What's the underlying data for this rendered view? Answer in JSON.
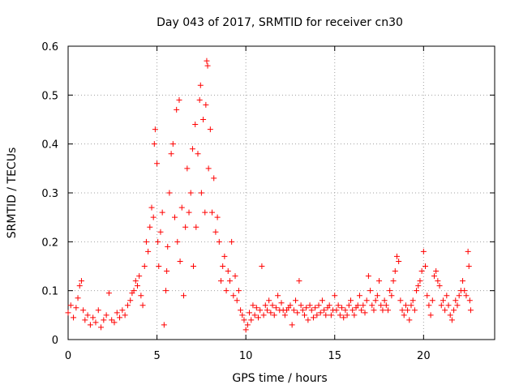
{
  "chart_data": {
    "type": "scatter",
    "title": "Day 043 of 2017, SRMTID for receiver cn30",
    "xlabel": "GPS time / hours",
    "ylabel": "SRMTID / TECUs",
    "xlim": [
      0,
      24
    ],
    "ylim": [
      0,
      0.6
    ],
    "xticks": [
      0,
      5,
      10,
      15,
      20
    ],
    "xtick_labels": [
      "0",
      "5",
      "10",
      "15",
      "20"
    ],
    "yticks": [
      0,
      0.1,
      0.2,
      0.3,
      0.4,
      0.5,
      0.6
    ],
    "ytick_labels": [
      "0",
      "0.1",
      "0.2",
      "0.3",
      "0.4",
      "0.5",
      "0.6"
    ],
    "grid": true,
    "marker": "+",
    "color": "#ff0000",
    "series": [
      {
        "name": "SRMTID",
        "points": [
          [
            0.0,
            0.055
          ],
          [
            0.15,
            0.07
          ],
          [
            0.3,
            0.045
          ],
          [
            0.45,
            0.065
          ],
          [
            0.55,
            0.085
          ],
          [
            0.65,
            0.11
          ],
          [
            0.75,
            0.12
          ],
          [
            0.85,
            0.06
          ],
          [
            0.95,
            0.04
          ],
          [
            1.1,
            0.05
          ],
          [
            1.25,
            0.03
          ],
          [
            1.4,
            0.045
          ],
          [
            1.55,
            0.035
          ],
          [
            1.7,
            0.06
          ],
          [
            1.85,
            0.025
          ],
          [
            2.0,
            0.04
          ],
          [
            2.15,
            0.05
          ],
          [
            2.3,
            0.095
          ],
          [
            2.45,
            0.04
          ],
          [
            2.6,
            0.035
          ],
          [
            2.75,
            0.055
          ],
          [
            2.9,
            0.045
          ],
          [
            3.05,
            0.06
          ],
          [
            3.2,
            0.05
          ],
          [
            3.35,
            0.07
          ],
          [
            3.5,
            0.08
          ],
          [
            3.6,
            0.095
          ],
          [
            3.7,
            0.1
          ],
          [
            3.8,
            0.12
          ],
          [
            3.9,
            0.11
          ],
          [
            4.0,
            0.13
          ],
          [
            4.1,
            0.09
          ],
          [
            4.2,
            0.07
          ],
          [
            4.3,
            0.15
          ],
          [
            4.4,
            0.2
          ],
          [
            4.5,
            0.18
          ],
          [
            4.6,
            0.23
          ],
          [
            4.7,
            0.27
          ],
          [
            4.8,
            0.25
          ],
          [
            4.85,
            0.4
          ],
          [
            4.9,
            0.43
          ],
          [
            5.0,
            0.36
          ],
          [
            5.05,
            0.2
          ],
          [
            5.1,
            0.15
          ],
          [
            5.2,
            0.22
          ],
          [
            5.3,
            0.26
          ],
          [
            5.4,
            0.03
          ],
          [
            5.5,
            0.1
          ],
          [
            5.55,
            0.14
          ],
          [
            5.6,
            0.19
          ],
          [
            5.7,
            0.3
          ],
          [
            5.8,
            0.38
          ],
          [
            5.9,
            0.4
          ],
          [
            6.0,
            0.25
          ],
          [
            6.1,
            0.47
          ],
          [
            6.15,
            0.2
          ],
          [
            6.25,
            0.49
          ],
          [
            6.3,
            0.16
          ],
          [
            6.4,
            0.27
          ],
          [
            6.5,
            0.09
          ],
          [
            6.6,
            0.23
          ],
          [
            6.7,
            0.35
          ],
          [
            6.8,
            0.26
          ],
          [
            6.9,
            0.3
          ],
          [
            7.0,
            0.39
          ],
          [
            7.05,
            0.15
          ],
          [
            7.15,
            0.44
          ],
          [
            7.2,
            0.23
          ],
          [
            7.3,
            0.38
          ],
          [
            7.4,
            0.49
          ],
          [
            7.45,
            0.52
          ],
          [
            7.5,
            0.3
          ],
          [
            7.6,
            0.45
          ],
          [
            7.7,
            0.26
          ],
          [
            7.75,
            0.48
          ],
          [
            7.8,
            0.57
          ],
          [
            7.85,
            0.56
          ],
          [
            7.9,
            0.35
          ],
          [
            8.0,
            0.43
          ],
          [
            8.1,
            0.26
          ],
          [
            8.2,
            0.33
          ],
          [
            8.3,
            0.22
          ],
          [
            8.4,
            0.25
          ],
          [
            8.5,
            0.2
          ],
          [
            8.6,
            0.12
          ],
          [
            8.7,
            0.15
          ],
          [
            8.8,
            0.17
          ],
          [
            8.9,
            0.1
          ],
          [
            9.0,
            0.14
          ],
          [
            9.1,
            0.12
          ],
          [
            9.2,
            0.2
          ],
          [
            9.3,
            0.09
          ],
          [
            9.4,
            0.13
          ],
          [
            9.5,
            0.08
          ],
          [
            9.6,
            0.1
          ],
          [
            9.7,
            0.06
          ],
          [
            9.8,
            0.05
          ],
          [
            9.9,
            0.04
          ],
          [
            10.0,
            0.02
          ],
          [
            10.1,
            0.03
          ],
          [
            10.2,
            0.055
          ],
          [
            10.3,
            0.04
          ],
          [
            10.4,
            0.07
          ],
          [
            10.5,
            0.05
          ],
          [
            10.6,
            0.065
          ],
          [
            10.7,
            0.045
          ],
          [
            10.8,
            0.06
          ],
          [
            10.9,
            0.15
          ],
          [
            11.0,
            0.05
          ],
          [
            11.1,
            0.07
          ],
          [
            11.2,
            0.06
          ],
          [
            11.3,
            0.08
          ],
          [
            11.4,
            0.055
          ],
          [
            11.5,
            0.07
          ],
          [
            11.6,
            0.05
          ],
          [
            11.7,
            0.065
          ],
          [
            11.8,
            0.09
          ],
          [
            11.9,
            0.06
          ],
          [
            12.0,
            0.075
          ],
          [
            12.1,
            0.06
          ],
          [
            12.2,
            0.05
          ],
          [
            12.3,
            0.06
          ],
          [
            12.4,
            0.065
          ],
          [
            12.5,
            0.07
          ],
          [
            12.6,
            0.03
          ],
          [
            12.7,
            0.06
          ],
          [
            12.8,
            0.08
          ],
          [
            12.9,
            0.055
          ],
          [
            13.0,
            0.12
          ],
          [
            13.1,
            0.07
          ],
          [
            13.2,
            0.06
          ],
          [
            13.3,
            0.05
          ],
          [
            13.4,
            0.065
          ],
          [
            13.5,
            0.04
          ],
          [
            13.6,
            0.07
          ],
          [
            13.7,
            0.06
          ],
          [
            13.8,
            0.045
          ],
          [
            13.9,
            0.065
          ],
          [
            14.0,
            0.05
          ],
          [
            14.1,
            0.07
          ],
          [
            14.2,
            0.055
          ],
          [
            14.3,
            0.08
          ],
          [
            14.4,
            0.06
          ],
          [
            14.5,
            0.05
          ],
          [
            14.6,
            0.065
          ],
          [
            14.7,
            0.07
          ],
          [
            14.8,
            0.05
          ],
          [
            14.9,
            0.06
          ],
          [
            15.0,
            0.09
          ],
          [
            15.1,
            0.06
          ],
          [
            15.2,
            0.07
          ],
          [
            15.3,
            0.05
          ],
          [
            15.4,
            0.065
          ],
          [
            15.5,
            0.045
          ],
          [
            15.6,
            0.06
          ],
          [
            15.7,
            0.05
          ],
          [
            15.8,
            0.07
          ],
          [
            15.9,
            0.08
          ],
          [
            16.0,
            0.06
          ],
          [
            16.1,
            0.05
          ],
          [
            16.2,
            0.065
          ],
          [
            16.3,
            0.07
          ],
          [
            16.4,
            0.09
          ],
          [
            16.5,
            0.06
          ],
          [
            16.6,
            0.07
          ],
          [
            16.7,
            0.055
          ],
          [
            16.8,
            0.08
          ],
          [
            16.9,
            0.13
          ],
          [
            17.0,
            0.1
          ],
          [
            17.1,
            0.07
          ],
          [
            17.2,
            0.06
          ],
          [
            17.3,
            0.08
          ],
          [
            17.4,
            0.09
          ],
          [
            17.5,
            0.12
          ],
          [
            17.6,
            0.07
          ],
          [
            17.7,
            0.06
          ],
          [
            17.8,
            0.08
          ],
          [
            17.9,
            0.07
          ],
          [
            18.0,
            0.06
          ],
          [
            18.1,
            0.1
          ],
          [
            18.2,
            0.09
          ],
          [
            18.3,
            0.12
          ],
          [
            18.4,
            0.14
          ],
          [
            18.5,
            0.17
          ],
          [
            18.6,
            0.16
          ],
          [
            18.7,
            0.08
          ],
          [
            18.8,
            0.06
          ],
          [
            18.9,
            0.05
          ],
          [
            19.0,
            0.07
          ],
          [
            19.1,
            0.06
          ],
          [
            19.2,
            0.04
          ],
          [
            19.3,
            0.07
          ],
          [
            19.4,
            0.08
          ],
          [
            19.5,
            0.06
          ],
          [
            19.6,
            0.1
          ],
          [
            19.7,
            0.11
          ],
          [
            19.8,
            0.12
          ],
          [
            19.9,
            0.14
          ],
          [
            20.0,
            0.18
          ],
          [
            20.1,
            0.15
          ],
          [
            20.2,
            0.09
          ],
          [
            20.3,
            0.07
          ],
          [
            20.4,
            0.05
          ],
          [
            20.5,
            0.08
          ],
          [
            20.6,
            0.13
          ],
          [
            20.7,
            0.14
          ],
          [
            20.8,
            0.12
          ],
          [
            20.9,
            0.11
          ],
          [
            21.0,
            0.07
          ],
          [
            21.1,
            0.08
          ],
          [
            21.2,
            0.06
          ],
          [
            21.3,
            0.09
          ],
          [
            21.4,
            0.07
          ],
          [
            21.5,
            0.05
          ],
          [
            21.6,
            0.04
          ],
          [
            21.7,
            0.06
          ],
          [
            21.8,
            0.08
          ],
          [
            21.9,
            0.07
          ],
          [
            22.0,
            0.09
          ],
          [
            22.1,
            0.1
          ],
          [
            22.2,
            0.12
          ],
          [
            22.3,
            0.1
          ],
          [
            22.4,
            0.09
          ],
          [
            22.5,
            0.18
          ],
          [
            22.55,
            0.15
          ],
          [
            22.6,
            0.08
          ],
          [
            22.65,
            0.06
          ]
        ]
      }
    ]
  }
}
